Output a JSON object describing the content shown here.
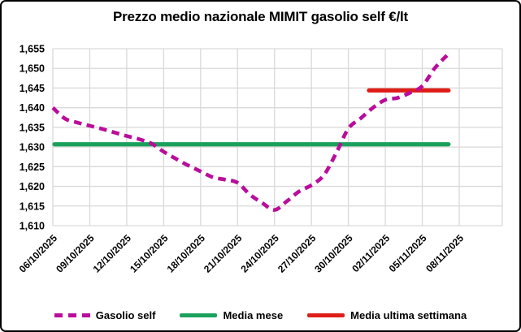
{
  "figure": {
    "title": "Prezzo medio nazionale MIMIT gasolio self €/lt"
  },
  "legend": {
    "items": [
      {
        "label": "Gasolio self",
        "color": "#BA0D9B",
        "line_style": "dashed"
      },
      {
        "label": "Media mese",
        "color": "#1AA25D",
        "line_style": "solid"
      },
      {
        "label": "Media ultima settimana",
        "color": "#E01E19",
        "line_style": "solid"
      }
    ]
  },
  "chart_data": {
    "type": "line",
    "title": "Prezzo medio nazionale MIMIT gasolio self €/lt",
    "xlabel": "",
    "ylabel": "",
    "ylim": [
      1610,
      1655
    ],
    "y_tick_step": 5,
    "y_tick_labels": [
      "1,610",
      "1,615",
      "1,620",
      "1,625",
      "1,630",
      "1,635",
      "1,640",
      "1,645",
      "1,650",
      "1,655"
    ],
    "x_tick_labels": [
      "06/10/2025",
      "09/10/2025",
      "12/10/2025",
      "15/10/2025",
      "18/10/2025",
      "21/10/2025",
      "24/10/2025",
      "27/10/2025",
      "30/10/2025",
      "02/11/2025",
      "05/11/2025",
      "08/11/2025"
    ],
    "grid": true,
    "legend_position": "bottom",
    "series": [
      {
        "name": "Gasolio self",
        "style": "dashed",
        "smooth": true,
        "color": "#BA0D9B",
        "x": [
          "06/10/2025",
          "07/10/2025",
          "08/10/2025",
          "09/10/2025",
          "10/10/2025",
          "11/10/2025",
          "12/10/2025",
          "13/10/2025",
          "14/10/2025",
          "15/10/2025",
          "16/10/2025",
          "17/10/2025",
          "18/10/2025",
          "19/10/2025",
          "20/10/2025",
          "21/10/2025",
          "22/10/2025",
          "23/10/2025",
          "24/10/2025",
          "25/10/2025",
          "26/10/2025",
          "27/10/2025",
          "28/10/2025",
          "29/10/2025",
          "30/10/2025",
          "31/10/2025",
          "01/11/2025",
          "02/11/2025",
          "03/11/2025",
          "04/11/2025",
          "05/11/2025",
          "06/11/2025",
          "07/11/2025"
        ],
        "values": [
          1640.0,
          1637.2,
          1636.2,
          1635.4,
          1634.6,
          1633.7,
          1632.8,
          1632.0,
          1630.9,
          1628.8,
          1627.0,
          1625.3,
          1623.8,
          1622.3,
          1621.7,
          1620.9,
          1617.9,
          1615.8,
          1614.0,
          1616.2,
          1618.7,
          1620.3,
          1622.8,
          1628.4,
          1634.7,
          1637.3,
          1640.0,
          1642.0,
          1642.5,
          1643.8,
          1645.5,
          1650.0,
          1653.3
        ]
      },
      {
        "name": "Media mese",
        "style": "solid",
        "color": "#1AA25D",
        "value": 1630.7,
        "x_start": "06/10/2025",
        "x_end": "07/11/2025"
      },
      {
        "name": "Media ultima settimana",
        "style": "solid",
        "color": "#E01E19",
        "value": 1644.4,
        "x_start": "01/11/2025",
        "x_end": "07/11/2025"
      }
    ]
  }
}
